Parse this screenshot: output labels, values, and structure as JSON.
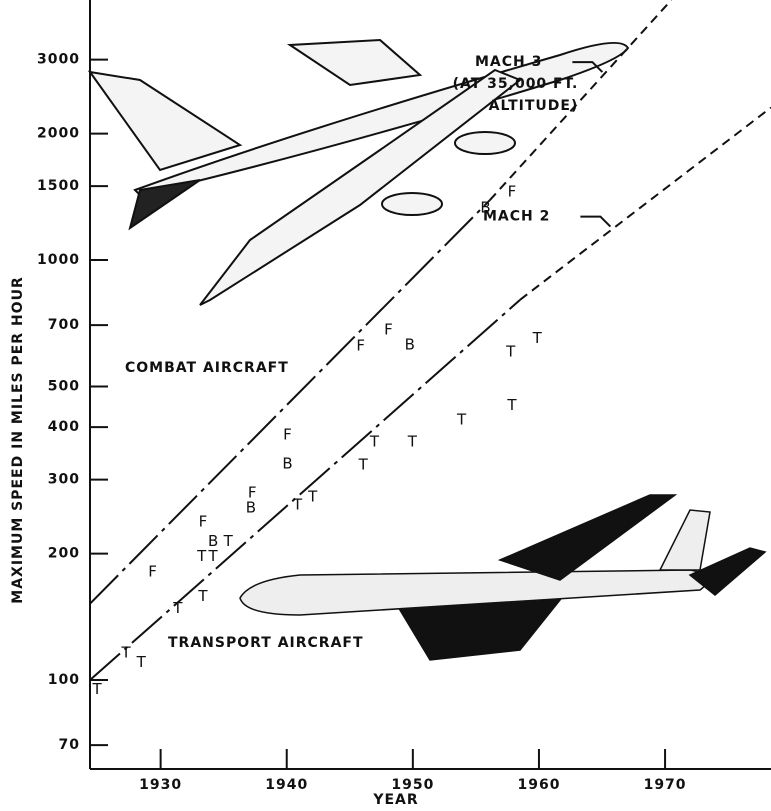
{
  "chart_data": {
    "type": "scatter",
    "xlabel": "YEAR",
    "ylabel": "MAXIMUM SPEED IN MILES PER HOUR",
    "xlim": [
      1924.4,
      1978.4
    ],
    "ylim": [
      61.4,
      4160
    ],
    "log_y": true,
    "xticks": [
      1930,
      1940,
      1950,
      1960,
      1970
    ],
    "yticks": [
      70,
      100,
      200,
      300,
      400,
      500,
      700,
      1000,
      1500,
      2000,
      3000
    ],
    "color": "#111111",
    "series": [
      {
        "name": "F",
        "x": [
          1929.4,
          1933.4,
          1937.3,
          1940.1,
          1945.9,
          1948.1,
          1957.9
        ],
        "values": [
          181,
          238,
          279,
          383,
          624,
          681,
          1450
        ]
      },
      {
        "name": "B",
        "x": [
          1934.2,
          1937.2,
          1940.1,
          1949.8,
          1955.8
        ],
        "values": [
          214,
          257,
          327,
          627,
          1330
        ]
      },
      {
        "name": "T",
        "x": [
          1925,
          1927.3,
          1928.5,
          1931.4,
          1933.4,
          1933.3,
          1934.2,
          1935.4,
          1940.9,
          1942.1,
          1946.1,
          1947.0,
          1950.0,
          1953.9,
          1957.8,
          1957.9,
          1959.9
        ],
        "values": [
          95,
          116,
          110,
          148,
          158,
          197,
          197,
          214,
          261,
          273,
          325,
          369,
          369,
          416,
          604,
          451,
          651
        ]
      }
    ],
    "lines": [
      {
        "x": [
          1924.4,
          1956.1
        ],
        "values": [
          152,
          1388
        ],
        "style": "dash-dot"
      },
      {
        "x": [
          1956.1,
          1970.5
        ],
        "values": [
          1388,
          4160
        ],
        "style": "dashed",
        "label": [
          "MACH 3",
          "(AT 35,000 FT.",
          "ALTITUDE)"
        ]
      },
      {
        "x": [
          1924.4,
          1958.5
        ],
        "values": [
          100,
          804
        ],
        "style": "dash-dot"
      },
      {
        "x": [
          1958.5,
          1978.4
        ],
        "values": [
          804,
          2307
        ],
        "style": "dashed",
        "label": [
          "MACH 2"
        ]
      }
    ],
    "annotations": [
      "COMBAT AIRCRAFT",
      "TRANSPORT AIRCRAFT"
    ]
  }
}
